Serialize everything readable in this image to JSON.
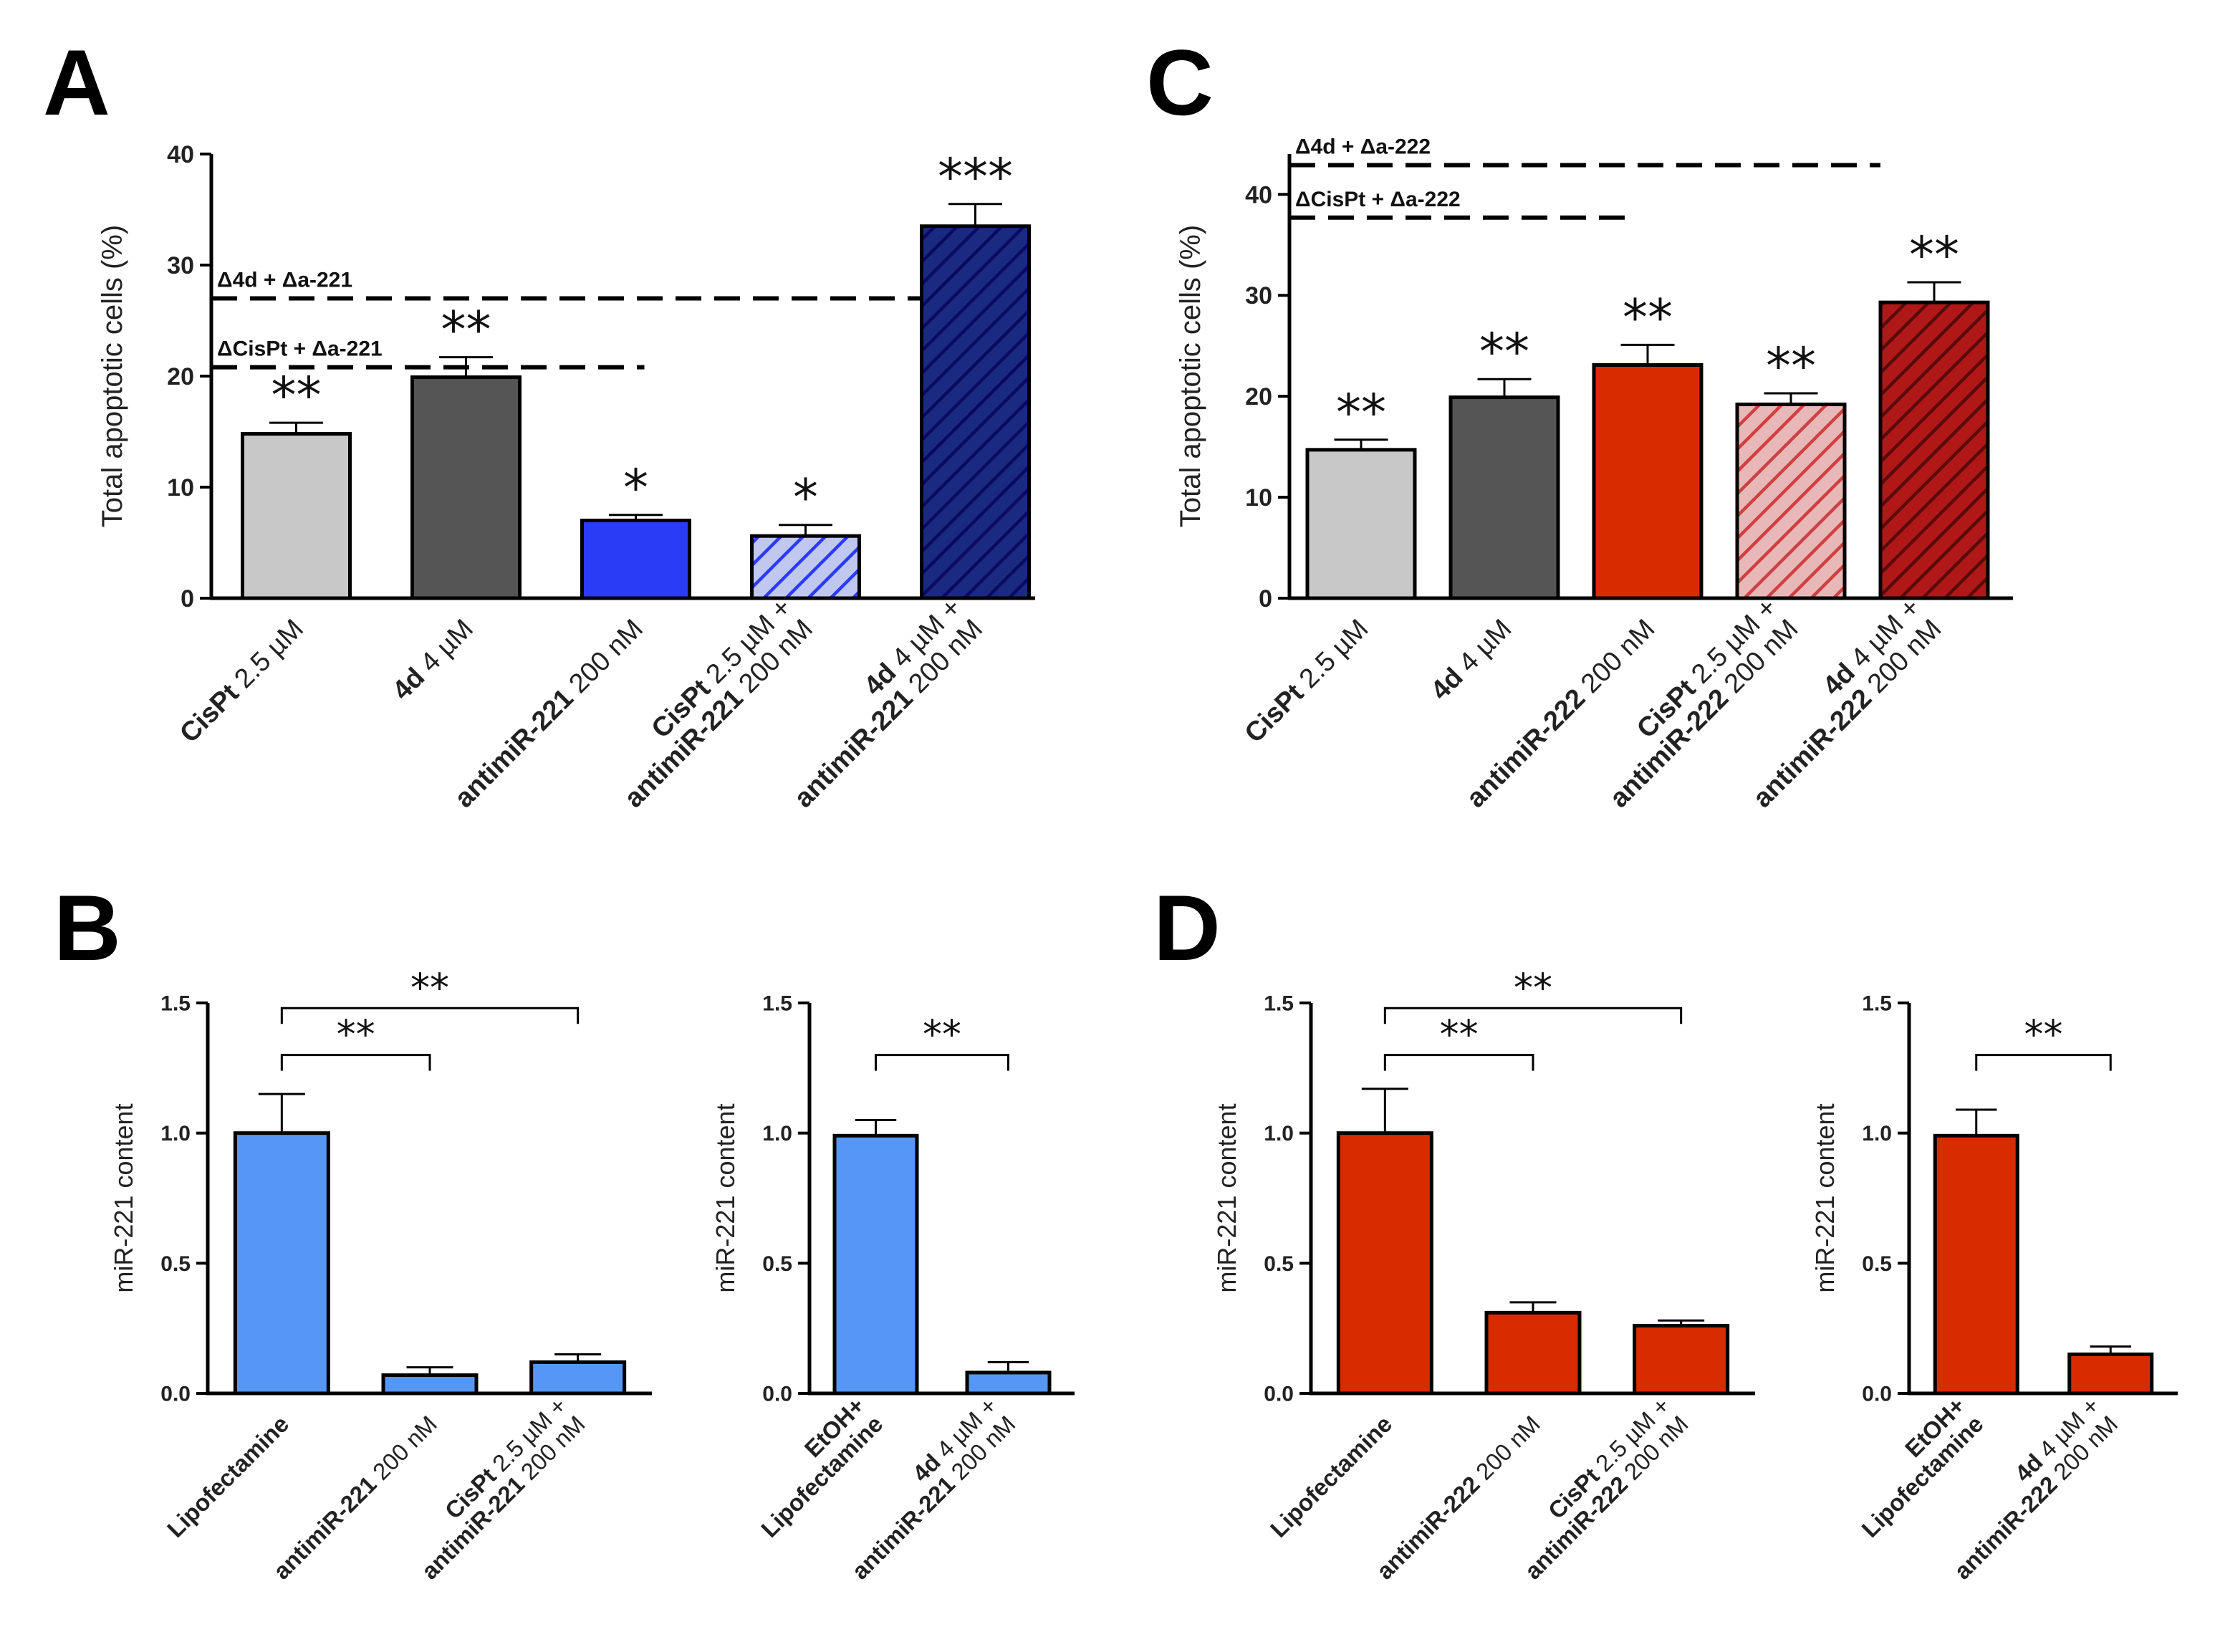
{
  "chart_data": [
    {
      "panel": "A",
      "type": "bar",
      "ylabel": "Total apoptotic cells (%)",
      "ylim": [
        0,
        40
      ],
      "yticks": [
        0,
        10,
        20,
        30,
        40
      ],
      "categories": [
        [
          {
            "t": "CisPt",
            "b": true
          },
          {
            "t": " 2.5 µM",
            "b": false
          }
        ],
        [
          {
            "t": "4d",
            "b": true
          },
          {
            "t": " 4 µM",
            "b": false
          }
        ],
        [
          {
            "t": "antimiR-221",
            "b": true
          },
          {
            "t": " 200 nM",
            "b": false
          }
        ],
        [
          {
            "t": "CisPt",
            "b": true
          },
          {
            "t": " 2.5 µM +",
            "b": false
          },
          {
            "br": true
          },
          {
            "t": "antimiR-221",
            "b": true
          },
          {
            "t": " 200 nM",
            "b": false
          }
        ],
        [
          {
            "t": "4d",
            "b": true
          },
          {
            "t": " 4 µM +",
            "b": false
          },
          {
            "br": true
          },
          {
            "t": "antimiR-221",
            "b": true
          },
          {
            "t": " 200 nM",
            "b": false
          }
        ]
      ],
      "values": [
        14.8,
        19.9,
        7.0,
        5.6,
        33.5
      ],
      "errors": [
        1.0,
        1.8,
        0.5,
        1.0,
        2.0
      ],
      "fills": [
        "#c8c8c8",
        "#555555",
        "#2a3cf5",
        "#c0c8f0",
        "#1a2a80"
      ],
      "hatch": [
        null,
        null,
        null,
        "#2a3cf5",
        "#0a0a60"
      ],
      "significance": [
        "**",
        "**",
        "*",
        "*",
        "***"
      ],
      "reference_lines": [
        {
          "label": "Δ4d + Δa-221",
          "value": 27.0,
          "extent": "to-bar-5"
        },
        {
          "label": "ΔCisPt + Δa-221",
          "value": 20.8,
          "extent": "to-bar-4"
        }
      ]
    },
    {
      "panel": "C",
      "type": "bar",
      "ylabel": "Total apoptotic cells (%)",
      "ylim": [
        0,
        44
      ],
      "yticks": [
        0,
        10,
        20,
        30,
        40
      ],
      "categories": [
        [
          {
            "t": "CisPt",
            "b": true
          },
          {
            "t": " 2.5 µM",
            "b": false
          }
        ],
        [
          {
            "t": "4d",
            "b": true
          },
          {
            "t": " 4 µM",
            "b": false
          }
        ],
        [
          {
            "t": "antimiR-222",
            "b": true
          },
          {
            "t": " 200 nM",
            "b": false
          }
        ],
        [
          {
            "t": "CisPt",
            "b": true
          },
          {
            "t": " 2.5 µM +",
            "b": false
          },
          {
            "br": true
          },
          {
            "t": "antimiR-222",
            "b": true
          },
          {
            "t": " 200 nM",
            "b": false
          }
        ],
        [
          {
            "t": "4d",
            "b": true
          },
          {
            "t": " 4 µM +",
            "b": false
          },
          {
            "br": true
          },
          {
            "t": "antimiR-222",
            "b": true
          },
          {
            "t": " 200 nM",
            "b": false
          }
        ]
      ],
      "values": [
        14.7,
        19.9,
        23.1,
        19.2,
        29.3
      ],
      "errors": [
        1.0,
        1.8,
        2.0,
        1.1,
        2.0
      ],
      "fills": [
        "#c8c8c8",
        "#555555",
        "#d92b00",
        "#e8b8b8",
        "#b01818"
      ],
      "hatch": [
        null,
        null,
        null,
        "#d04040",
        "#5a0a0a"
      ],
      "significance": [
        "**",
        "**",
        "**",
        "**",
        "**"
      ],
      "reference_lines": [
        {
          "label": "Δ4d + Δa-222",
          "value": 42.9,
          "extent": "to-bar-5"
        },
        {
          "label": "ΔCisPt + Δa-222",
          "value": 37.7,
          "extent": "to-bar-4"
        }
      ]
    },
    {
      "panel": "B",
      "type": "bar",
      "ylabel": "miR-221 content",
      "ylim": [
        0,
        1.5
      ],
      "yticks": [
        "0.0",
        "0.5",
        "1.0",
        "1.5"
      ],
      "categories": [
        [
          {
            "t": "Lipofectamine",
            "b": true
          }
        ],
        [
          {
            "t": "antimiR-221",
            "b": true
          },
          {
            "t": " 200 nM",
            "b": false
          }
        ],
        [
          {
            "t": "CisPt",
            "b": true
          },
          {
            "t": " 2.5 µM +",
            "b": false
          },
          {
            "br": true
          },
          {
            "t": "antimiR-221",
            "b": true
          },
          {
            "t": " 200 nM",
            "b": false
          }
        ]
      ],
      "values": [
        1.0,
        0.07,
        0.12
      ],
      "errors": [
        0.15,
        0.03,
        0.03
      ],
      "fill": "#5597f5",
      "comparisons": [
        {
          "from": 0,
          "to": 1,
          "label": "**",
          "level": 1.3
        },
        {
          "from": 0,
          "to": 2,
          "label": "**",
          "level": 1.48
        }
      ]
    },
    {
      "panel": "B",
      "type": "bar",
      "ylabel": "miR-221 content",
      "ylim": [
        0,
        1.5
      ],
      "yticks": [
        "0.0",
        "0.5",
        "1.0",
        "1.5"
      ],
      "categories": [
        [
          {
            "t": "EtOH+",
            "b": true
          },
          {
            "br": true
          },
          {
            "t": "Lipofectamine",
            "b": true
          }
        ],
        [
          {
            "t": "4d",
            "b": true
          },
          {
            "t": " 4 µM +",
            "b": false
          },
          {
            "br": true
          },
          {
            "t": "antimiR-221",
            "b": true
          },
          {
            "t": " 200 nM",
            "b": false
          }
        ]
      ],
      "values": [
        0.99,
        0.08
      ],
      "errors": [
        0.06,
        0.04
      ],
      "fill": "#5597f5",
      "comparisons": [
        {
          "from": 0,
          "to": 1,
          "label": "**",
          "level": 1.3
        }
      ]
    },
    {
      "panel": "D",
      "type": "bar",
      "ylabel": "miR-221 content",
      "ylim": [
        0,
        1.5
      ],
      "yticks": [
        "0.0",
        "0.5",
        "1.0",
        "1.5"
      ],
      "categories": [
        [
          {
            "t": "Lipofectamine",
            "b": true
          }
        ],
        [
          {
            "t": "antimiR-222",
            "b": true
          },
          {
            "t": " 200 nM",
            "b": false
          }
        ],
        [
          {
            "t": "CisPt",
            "b": true
          },
          {
            "t": " 2.5 µM +",
            "b": false
          },
          {
            "br": true
          },
          {
            "t": "antimiR-222",
            "b": true
          },
          {
            "t": " 200 nM",
            "b": false
          }
        ]
      ],
      "values": [
        1.0,
        0.31,
        0.26
      ],
      "errors": [
        0.17,
        0.04,
        0.02
      ],
      "fill": "#d92b00",
      "comparisons": [
        {
          "from": 0,
          "to": 1,
          "label": "**",
          "level": 1.3
        },
        {
          "from": 0,
          "to": 2,
          "label": "**",
          "level": 1.48
        }
      ]
    },
    {
      "panel": "D",
      "type": "bar",
      "ylabel": "miR-221 content",
      "ylim": [
        0,
        1.5
      ],
      "yticks": [
        "0.0",
        "0.5",
        "1.0",
        "1.5"
      ],
      "categories": [
        [
          {
            "t": "EtOH+",
            "b": true
          },
          {
            "br": true
          },
          {
            "t": "Lipofectamine",
            "b": true
          }
        ],
        [
          {
            "t": "4d",
            "b": true
          },
          {
            "t": " 4 µM +",
            "b": false
          },
          {
            "br": true
          },
          {
            "t": "antimiR-222",
            "b": true
          },
          {
            "t": " 200 nM",
            "b": false
          }
        ]
      ],
      "values": [
        0.99,
        0.15
      ],
      "errors": [
        0.1,
        0.03
      ],
      "fill": "#d92b00",
      "comparisons": [
        {
          "from": 0,
          "to": 1,
          "label": "**",
          "level": 1.3
        }
      ]
    }
  ],
  "panel_labels": [
    "A",
    "B",
    "C",
    "D"
  ]
}
